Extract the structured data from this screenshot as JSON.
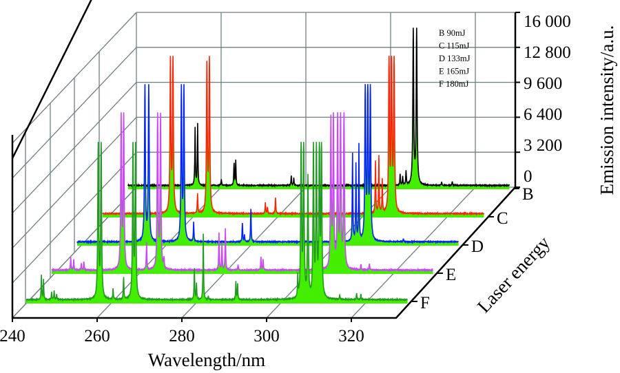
{
  "chart_data": {
    "type": "3d-waterfall-line",
    "xlabel": "Wavelength/nm",
    "ylabel": "Laser energy",
    "zlabel": "Emission intensity/a.u.",
    "xlim": [
      240,
      330
    ],
    "zlim": [
      0,
      16000
    ],
    "x_ticks": [
      "240",
      "260",
      "280",
      "300",
      "320"
    ],
    "z_ticks": [
      "0",
      "3 200",
      "6 400",
      "9 600",
      "12 800",
      "16 000"
    ],
    "depth_ticks": [
      "B",
      "C",
      "D",
      "E",
      "F"
    ],
    "fill_color": "#44ee00",
    "grid": true,
    "legend_position": "top-right",
    "series": [
      {
        "name": "B",
        "legend": "B   90mJ",
        "color": "#000000",
        "peaks": [
          [
            255.8,
            5300
          ],
          [
            256.4,
            5600
          ],
          [
            262,
            600
          ],
          [
            265,
            2000
          ],
          [
            265.4,
            2300
          ],
          [
            278.5,
            900
          ],
          [
            279.1,
            700
          ],
          [
            304.2,
            1000
          ],
          [
            304.8,
            800
          ],
          [
            305.6,
            1300
          ],
          [
            307.3,
            14600
          ],
          [
            308.1,
            14600
          ],
          [
            314,
            300
          ],
          [
            316.5,
            350
          ]
        ]
      },
      {
        "name": "C",
        "legend": "C 115mJ",
        "color": "#ff2200",
        "peaks": [
          [
            256,
            14400
          ],
          [
            256.6,
            14400
          ],
          [
            262.4,
            1800
          ],
          [
            264.6,
            13400
          ],
          [
            265.2,
            14400
          ],
          [
            278.4,
            1000
          ],
          [
            278.9,
            600
          ],
          [
            280.8,
            1500
          ],
          [
            304.4,
            4800
          ],
          [
            305.2,
            5200
          ],
          [
            306,
            3000
          ],
          [
            307.6,
            14600
          ],
          [
            308.2,
            14600
          ],
          [
            308.8,
            14600
          ]
        ]
      },
      {
        "name": "D",
        "legend": "D 133mJ",
        "color": "#0022ff",
        "peaks": [
          [
            245,
            300
          ],
          [
            256,
            14700
          ],
          [
            256.9,
            14700
          ],
          [
            264.6,
            14400
          ],
          [
            265.2,
            14000
          ],
          [
            267.5,
            1800
          ],
          [
            279,
            1700
          ],
          [
            279.5,
            600
          ],
          [
            281,
            3000
          ],
          [
            303,
            600
          ],
          [
            305,
            8000
          ],
          [
            305.8,
            7000
          ],
          [
            306.5,
            8800
          ],
          [
            308,
            14600
          ],
          [
            308.6,
            14600
          ],
          [
            309.2,
            14600
          ],
          [
            317,
            300
          ]
        ]
      },
      {
        "name": "E",
        "legend": "E 165mJ",
        "color": "#cc44ff",
        "peaks": [
          [
            244.5,
            1200
          ],
          [
            245.2,
            1000
          ],
          [
            247,
            600
          ],
          [
            247.6,
            800
          ],
          [
            256.4,
            14000
          ],
          [
            257,
            14400
          ],
          [
            262.4,
            2500
          ],
          [
            265,
            14400
          ],
          [
            265.7,
            14000
          ],
          [
            266.5,
            900
          ],
          [
            279.5,
            3400
          ],
          [
            280.2,
            2400
          ],
          [
            281,
            3800
          ],
          [
            284,
            500
          ],
          [
            289.4,
            1200
          ],
          [
            289.9,
            1000
          ],
          [
            305.9,
            13500
          ],
          [
            306.5,
            14400
          ],
          [
            307.5,
            14600
          ],
          [
            308.2,
            14600
          ],
          [
            309,
            14600
          ],
          [
            313,
            500
          ],
          [
            315,
            600
          ]
        ]
      },
      {
        "name": "F",
        "legend": "F 180mJ",
        "color": "#229922",
        "peaks": [
          [
            243.6,
            2200
          ],
          [
            244.1,
            1800
          ],
          [
            246,
            700
          ],
          [
            246.6,
            800
          ],
          [
            247.2,
            500
          ],
          [
            257,
            14500
          ],
          [
            257.7,
            14500
          ],
          [
            260.5,
            1000
          ],
          [
            263,
            2000
          ],
          [
            265.2,
            14400
          ],
          [
            265.8,
            14000
          ],
          [
            279.7,
            2800
          ],
          [
            280.2,
            1500
          ],
          [
            281.8,
            6000
          ],
          [
            283,
            300
          ],
          [
            289.5,
            1600
          ],
          [
            289.9,
            1400
          ],
          [
            304.1,
            2000
          ],
          [
            304.9,
            15000
          ],
          [
            305.5,
            15000
          ],
          [
            306.5,
            11000
          ],
          [
            307.8,
            14500
          ],
          [
            308.5,
            14500
          ],
          [
            309.2,
            14500
          ],
          [
            309.7,
            14500
          ],
          [
            314,
            400
          ],
          [
            318,
            600
          ],
          [
            319,
            500
          ]
        ]
      }
    ]
  }
}
